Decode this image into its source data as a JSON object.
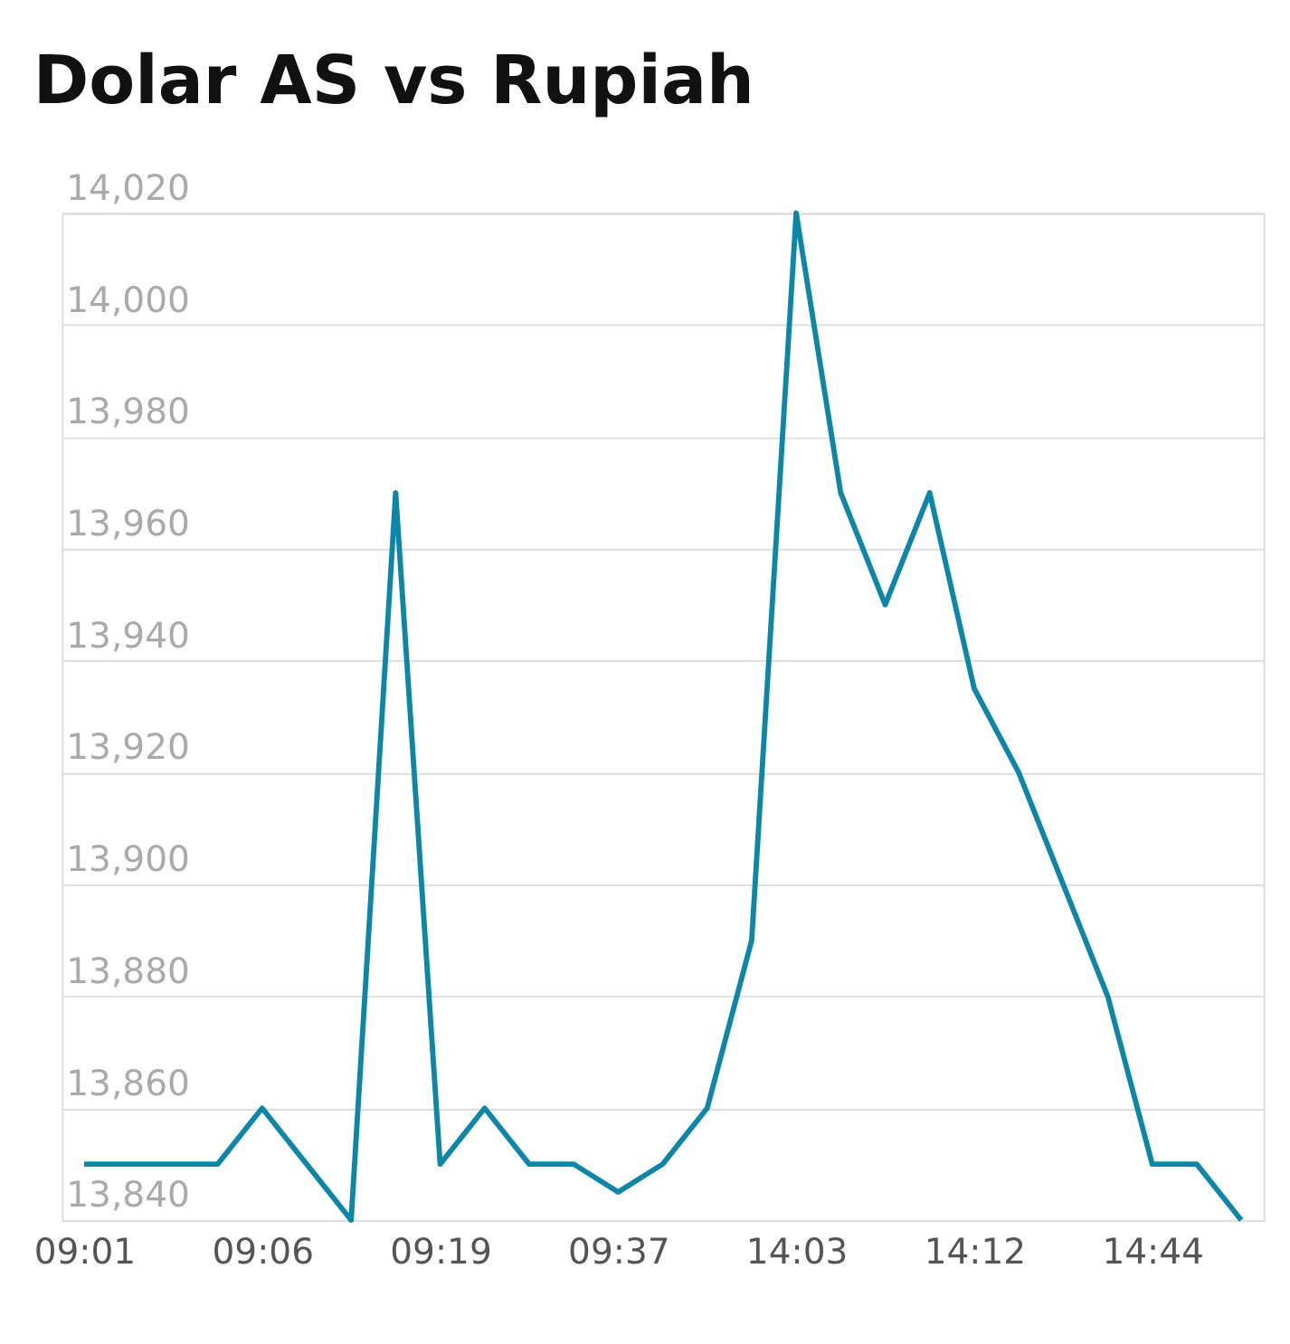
{
  "chart_data": {
    "type": "line",
    "title": "Dolar AS vs Rupiah",
    "categories": [
      "09:01",
      null,
      null,
      null,
      "09:06",
      null,
      null,
      null,
      "09:19",
      null,
      null,
      null,
      "09:37",
      null,
      null,
      null,
      "14:03",
      null,
      null,
      null,
      "14:12",
      null,
      null,
      null,
      "14:44",
      null,
      null
    ],
    "series": [
      {
        "color": "#0e86a8",
        "values": [
          13850,
          13850,
          13850,
          13850,
          13860,
          13850,
          13840,
          13970,
          13850,
          13860,
          13850,
          13850,
          13845,
          13850,
          13860,
          13890,
          14020,
          13970,
          13950,
          13970,
          13935,
          13920,
          13900,
          13880,
          13850,
          13850,
          13840
        ]
      }
    ],
    "ylim": [
      13840,
      14020
    ],
    "yticks": [
      {
        "value": 13840,
        "label": "13,840"
      },
      {
        "value": 13860,
        "label": "13,860"
      },
      {
        "value": 13880,
        "label": "13,880"
      },
      {
        "value": 13900,
        "label": "13,900"
      },
      {
        "value": 13920,
        "label": "13,920"
      },
      {
        "value": 13940,
        "label": "13,940"
      },
      {
        "value": 13960,
        "label": "13,960"
      },
      {
        "value": 13980,
        "label": "13,980"
      },
      {
        "value": 14000,
        "label": "14,000"
      },
      {
        "value": 14020,
        "label": "14,020"
      }
    ],
    "grid": "y",
    "legend": false,
    "marker": "none",
    "line_style": "solid"
  }
}
